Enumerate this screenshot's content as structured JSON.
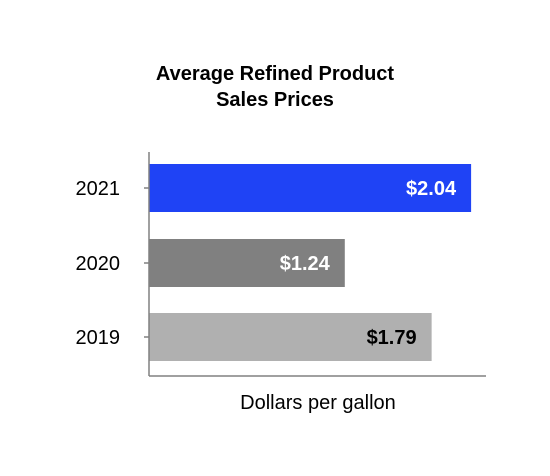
{
  "chart_data": {
    "type": "bar",
    "orientation": "horizontal",
    "title_lines": [
      "Average Refined Product",
      "Sales Prices"
    ],
    "xlabel": "Dollars per gallon",
    "ylabel": "",
    "categories": [
      "2021",
      "2020",
      "2019"
    ],
    "values": [
      2.04,
      1.24,
      1.79
    ],
    "data_labels": [
      "$2.04",
      "$1.24",
      "$1.79"
    ],
    "bar_colors": [
      "#1f43f5",
      "#808080",
      "#b0b0b0"
    ],
    "label_colors": [
      "#ffffff",
      "#ffffff",
      "#000000"
    ],
    "xlim": [
      0,
      2.28
    ],
    "grid": false,
    "legend": "none"
  }
}
